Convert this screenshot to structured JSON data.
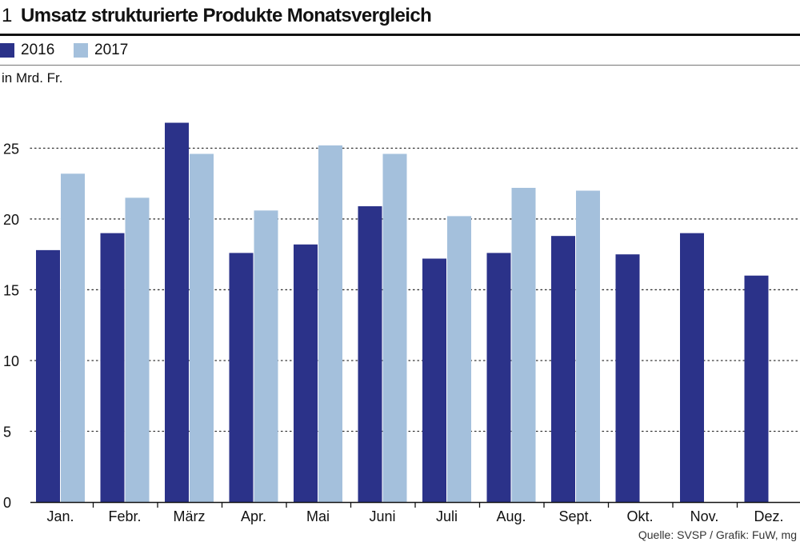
{
  "header": {
    "number": "1",
    "title": "Umsatz strukturierte Produkte Monatsvergleich"
  },
  "unit_label": "in Mrd. Fr.",
  "source": "Quelle: SVSP / Grafik: FuW, mg",
  "colors": {
    "series_2016": "#2b3289",
    "series_2017": "#a4c0dc",
    "gridline": "#333333",
    "axis": "#111111"
  },
  "chart_data": {
    "type": "bar",
    "title": "Umsatz strukturierte Produkte Monatsvergleich",
    "ylabel": "in Mrd. Fr.",
    "xlabel": "",
    "ylim": [
      0,
      27
    ],
    "yticks": [
      0,
      5,
      10,
      15,
      20,
      25
    ],
    "grid": true,
    "legend_position": "top-left",
    "categories": [
      "Jan.",
      "Febr.",
      "März",
      "Apr.",
      "Mai",
      "Juni",
      "Juli",
      "Aug.",
      "Sept.",
      "Okt.",
      "Nov.",
      "Dez."
    ],
    "series": [
      {
        "name": "2016",
        "values": [
          17.8,
          19.0,
          26.8,
          17.6,
          18.2,
          20.9,
          17.2,
          17.6,
          18.8,
          17.5,
          19.0,
          16.0
        ]
      },
      {
        "name": "2017",
        "values": [
          23.2,
          21.5,
          24.6,
          20.6,
          25.2,
          24.6,
          20.2,
          22.2,
          22.0,
          null,
          null,
          null
        ]
      }
    ]
  }
}
